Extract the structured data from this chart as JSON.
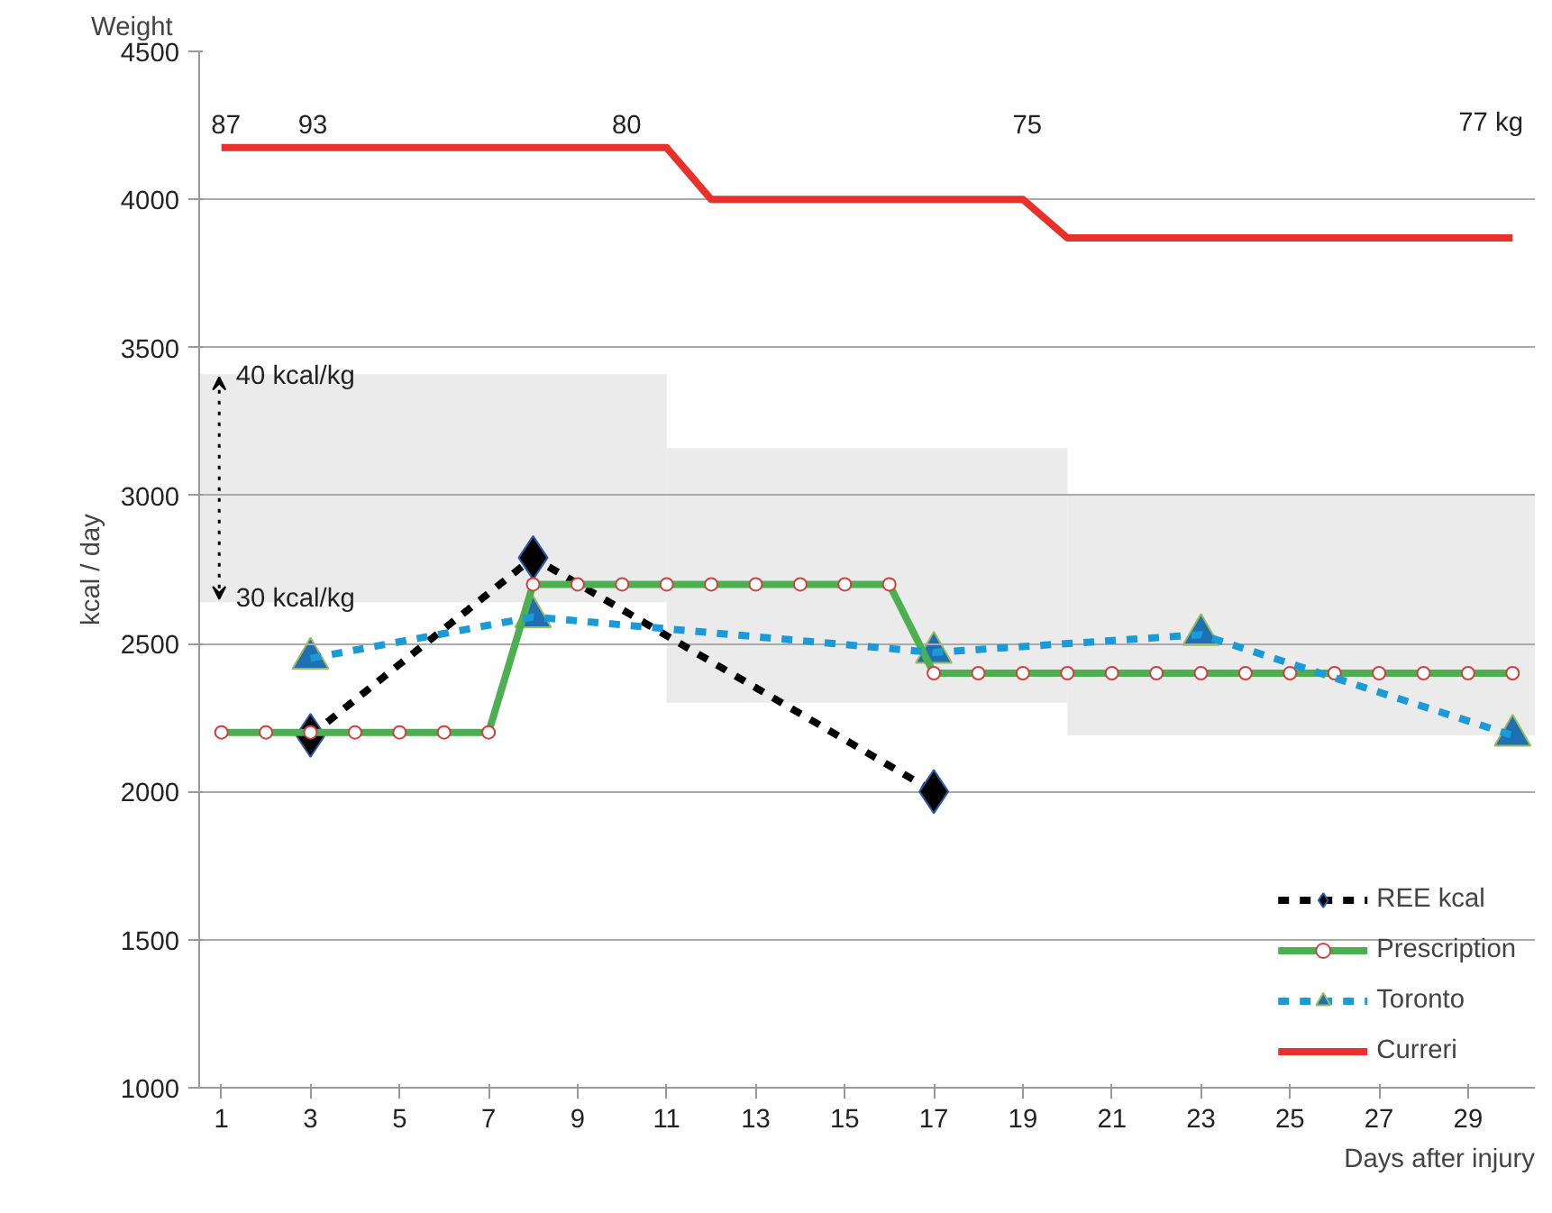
{
  "chart_data": {
    "type": "line",
    "ylabel": "kcal / day",
    "xlabel": "Days after injury",
    "x": [
      1,
      2,
      3,
      4,
      5,
      6,
      7,
      8,
      9,
      10,
      11,
      12,
      13,
      14,
      15,
      16,
      17,
      18,
      19,
      20,
      21,
      22,
      23,
      24,
      25,
      26,
      27,
      28,
      29,
      30
    ],
    "xlim": [
      0.5,
      30.5
    ],
    "xticks": [
      1,
      3,
      5,
      7,
      9,
      11,
      13,
      15,
      17,
      19,
      21,
      23,
      25,
      27,
      29
    ],
    "ylim": [
      1000,
      4500
    ],
    "yticks": [
      1000,
      1500,
      2000,
      2500,
      3000,
      3500,
      4000,
      4500
    ],
    "grid": "y",
    "legend": "bottom right",
    "series": [
      {
        "type": "bar",
        "color": "#ebebeb",
        "x": [
          5.75,
          15.5,
          25.25
        ],
        "base": [
          2640,
          2300,
          2190
        ],
        "values": [
          770,
          860,
          810
        ]
      },
      {
        "name": "REE kcal",
        "color": "#000000",
        "x": [
          3,
          8,
          17
        ],
        "values": [
          2190,
          2790,
          2000
        ],
        "marker": "diamond",
        "line_style": "dashed"
      },
      {
        "name": "Prescription",
        "color": "#4caf50",
        "values": [
          2200,
          2200,
          2200,
          2200,
          2200,
          2200,
          2200,
          2700,
          2700,
          2700,
          2700,
          2700,
          2700,
          2700,
          2700,
          2700,
          2400,
          2400,
          2400,
          2400,
          2400,
          2400,
          2400,
          2400,
          2400,
          2400,
          2400,
          2400,
          2400,
          2400
        ],
        "marker": "circle",
        "line_style": "solid"
      },
      {
        "name": "Toronto",
        "color": "#1a9ad6",
        "x": [
          3,
          8,
          17,
          23,
          30
        ],
        "values": [
          2450,
          2590,
          2470,
          2530,
          2190
        ],
        "marker": "triangle",
        "line_style": "dashed"
      },
      {
        "name": "Curreri",
        "color": "#e8312a",
        "values": [
          4175,
          4175,
          4175,
          4175,
          4175,
          4175,
          4175,
          4175,
          4175,
          4175,
          4175,
          4000,
          4000,
          4000,
          4000,
          4000,
          4000,
          4000,
          4000,
          3870,
          3870,
          3870,
          3870,
          3870,
          3870,
          3870,
          3870,
          3870,
          3870,
          3870
        ],
        "marker": "none",
        "line_style": "solid"
      }
    ],
    "annotations": [
      "Weight",
      "87",
      "93",
      "80",
      "75",
      "77 kg",
      {
        "text": "40 kcal/kg",
        "x": 1,
        "y": 3400
      },
      {
        "text": "30 kcal/kg",
        "x": 1,
        "y": 2650
      }
    ]
  }
}
